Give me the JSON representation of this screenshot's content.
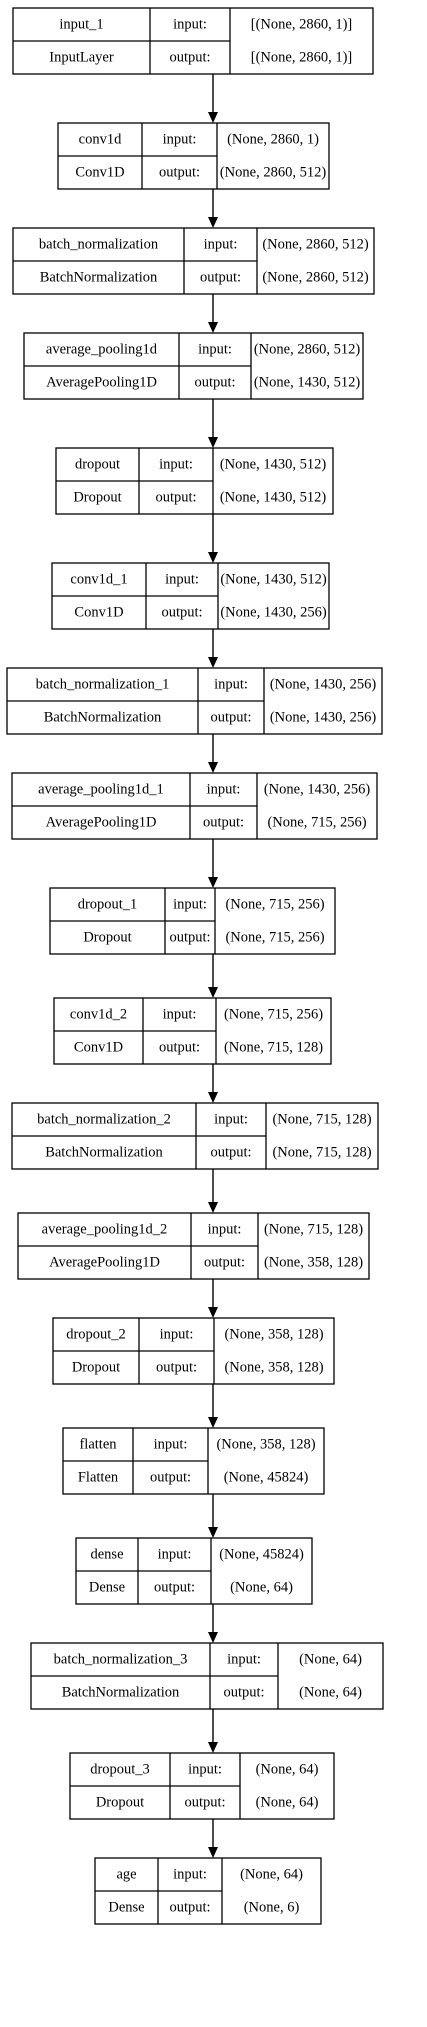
{
  "nodes": [
    {
      "name": "input_1",
      "type": "InputLayer",
      "input_label": "input:",
      "output_label": "output:",
      "input_shape": "[(None, 2860, 1)]",
      "output_shape": "[(None, 2860, 1)]"
    },
    {
      "name": "conv1d",
      "type": "Conv1D",
      "input_label": "input:",
      "output_label": "output:",
      "input_shape": "(None, 2860, 1)",
      "output_shape": "(None, 2860, 512)"
    },
    {
      "name": "batch_normalization",
      "type": "BatchNormalization",
      "input_label": "input:",
      "output_label": "output:",
      "input_shape": "(None, 2860, 512)",
      "output_shape": "(None, 2860, 512)"
    },
    {
      "name": "average_pooling1d",
      "type": "AveragePooling1D",
      "input_label": "input:",
      "output_label": "output:",
      "input_shape": "(None, 2860, 512)",
      "output_shape": "(None, 1430, 512)"
    },
    {
      "name": "dropout",
      "type": "Dropout",
      "input_label": "input:",
      "output_label": "output:",
      "input_shape": "(None, 1430, 512)",
      "output_shape": "(None, 1430, 512)"
    },
    {
      "name": "conv1d_1",
      "type": "Conv1D",
      "input_label": "input:",
      "output_label": "output:",
      "input_shape": "(None, 1430, 512)",
      "output_shape": "(None, 1430, 256)"
    },
    {
      "name": "batch_normalization_1",
      "type": "BatchNormalization",
      "input_label": "input:",
      "output_label": "output:",
      "input_shape": "(None, 1430, 256)",
      "output_shape": "(None, 1430, 256)"
    },
    {
      "name": "average_pooling1d_1",
      "type": "AveragePooling1D",
      "input_label": "input:",
      "output_label": "output:",
      "input_shape": "(None, 1430, 256)",
      "output_shape": "(None, 715, 256)"
    },
    {
      "name": "dropout_1",
      "type": "Dropout",
      "input_label": "input:",
      "output_label": "output:",
      "input_shape": "(None, 715, 256)",
      "output_shape": "(None, 715, 256)"
    },
    {
      "name": "conv1d_2",
      "type": "Conv1D",
      "input_label": "input:",
      "output_label": "output:",
      "input_shape": "(None, 715, 256)",
      "output_shape": "(None, 715, 128)"
    },
    {
      "name": "batch_normalization_2",
      "type": "BatchNormalization",
      "input_label": "input:",
      "output_label": "output:",
      "input_shape": "(None, 715, 128)",
      "output_shape": "(None, 715, 128)"
    },
    {
      "name": "average_pooling1d_2",
      "type": "AveragePooling1D",
      "input_label": "input:",
      "output_label": "output:",
      "input_shape": "(None, 715, 128)",
      "output_shape": "(None, 358, 128)"
    },
    {
      "name": "dropout_2",
      "type": "Dropout",
      "input_label": "input:",
      "output_label": "output:",
      "input_shape": "(None, 358, 128)",
      "output_shape": "(None, 358, 128)"
    },
    {
      "name": "flatten",
      "type": "Flatten",
      "input_label": "input:",
      "output_label": "output:",
      "input_shape": "(None, 358, 128)",
      "output_shape": "(None, 45824)"
    },
    {
      "name": "dense",
      "type": "Dense",
      "input_label": "input:",
      "output_label": "output:",
      "input_shape": "(None, 45824)",
      "output_shape": "(None, 64)"
    },
    {
      "name": "batch_normalization_3",
      "type": "BatchNormalization",
      "input_label": "input:",
      "output_label": "output:",
      "input_shape": "(None, 64)",
      "output_shape": "(None, 64)"
    },
    {
      "name": "dropout_3",
      "type": "Dropout",
      "input_label": "input:",
      "output_label": "output:",
      "input_shape": "(None, 64)",
      "output_shape": "(None, 64)"
    },
    {
      "name": "age",
      "type": "Dense",
      "input_label": "input:",
      "output_label": "output:",
      "input_shape": "(None, 64)",
      "output_shape": "(None, 6)"
    }
  ]
}
